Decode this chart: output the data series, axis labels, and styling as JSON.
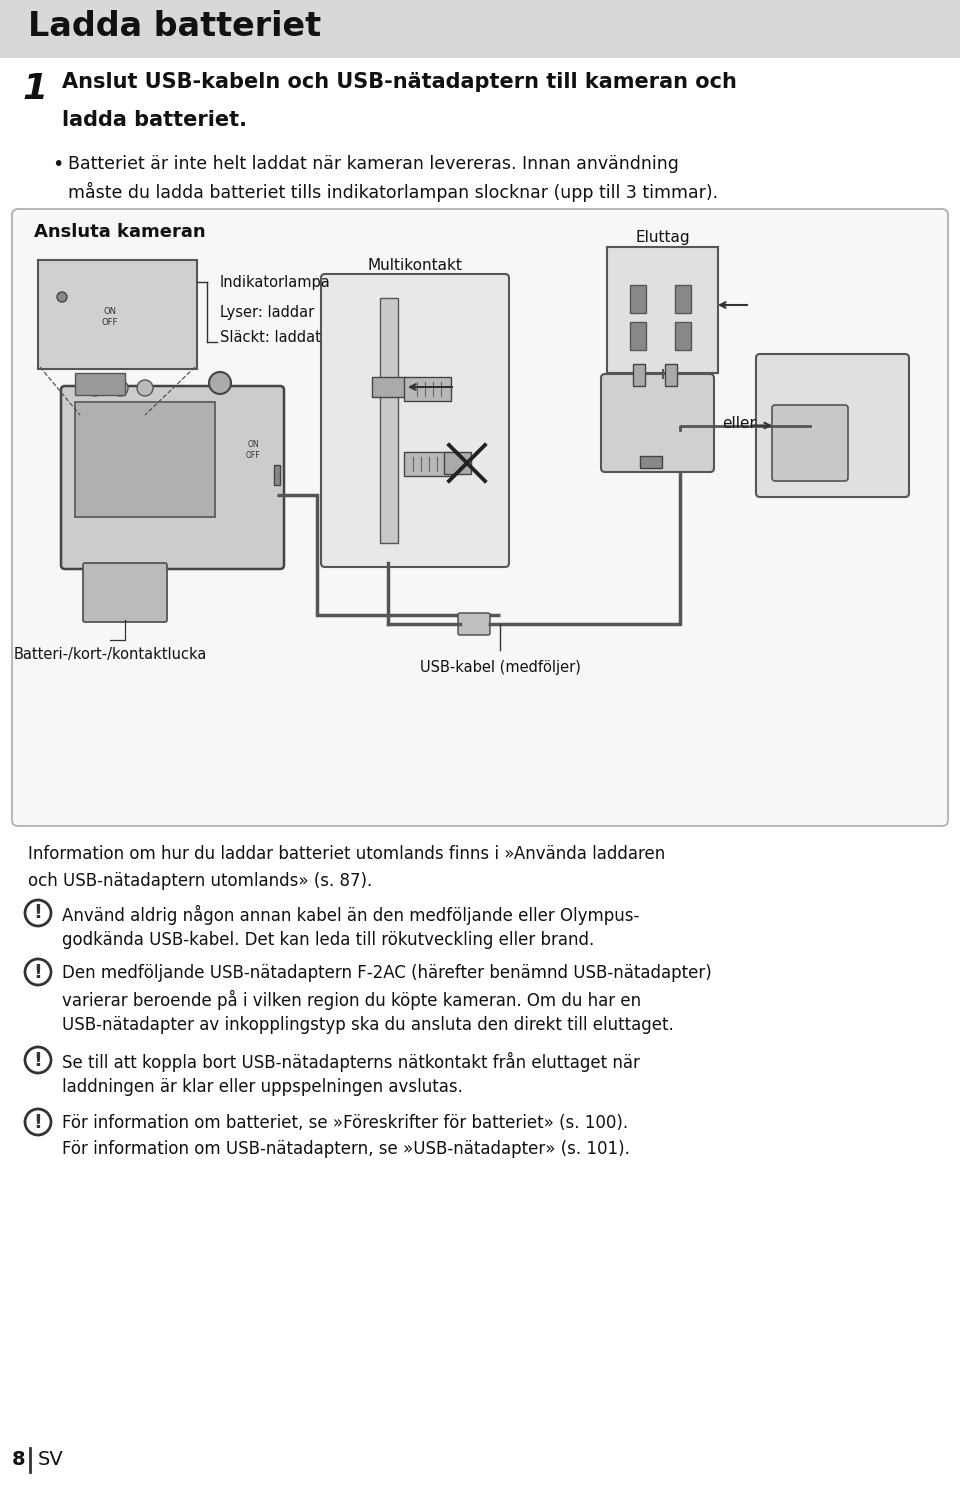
{
  "title": "Ladda batteriet",
  "title_bg": "#d8d8d8",
  "page_bg": "#ffffff",
  "step_number": "1",
  "step_line1": "Anslut USB-kabeln och USB-nätadaptern till kameran och",
  "step_line2": "ladda batteriet.",
  "bullet_line1": "Batteriet är inte helt laddat när kameran levereras. Innan användning",
  "bullet_line2": "måste du ladda batteriet tills indikatorlampan slocknar (upp till 3 timmar).",
  "diagram_title": "Ansluta kameran",
  "label_indikatorlampa": "Indikatorlampa",
  "label_lyser": "Lyser: laddar",
  "label_slackt": "Släckt: laddat",
  "label_multikontakt": "Multikontakt",
  "label_eluttag": "Eluttag",
  "label_eller": "eller",
  "label_batteri": "Batteri-/kort-/kontaktlucka",
  "label_usb_kabel": "USB-kabel (medföljer)",
  "info_line1": "Information om hur du laddar batteriet utomlands finns i »Använda laddaren",
  "info_line2": "och USB-nätadaptern utomlands» (s. 87).",
  "warn1_line1": "Använd aldrig någon annan kabel än den medföljande eller Olympus-",
  "warn1_line2": "godkända USB-kabel. Det kan leda till rökutveckling eller brand.",
  "warn2_line1": "Den medföljande USB-nätadaptern F-2AC (härefter benämnd USB-nätadapter)",
  "warn2_line2": "varierar beroende på i vilken region du köpte kameran. Om du har en",
  "warn2_line3": "USB-nätadapter av inkopplingstyp ska du ansluta den direkt till eluttaget.",
  "warn3_line1": "Se till att koppla bort USB-nätadapterns nätkontakt från eluttaget när",
  "warn3_line2": "laddningen är klar eller uppspelningen avslutas.",
  "warn4_line1": "För information om batteriet, se »Föreskrifter för batteriet» (s. 100).",
  "warn4_line2": "För information om USB-nätadaptern, se »USB-nätadapter» (s. 101).",
  "page_number": "8",
  "page_label": "SV"
}
